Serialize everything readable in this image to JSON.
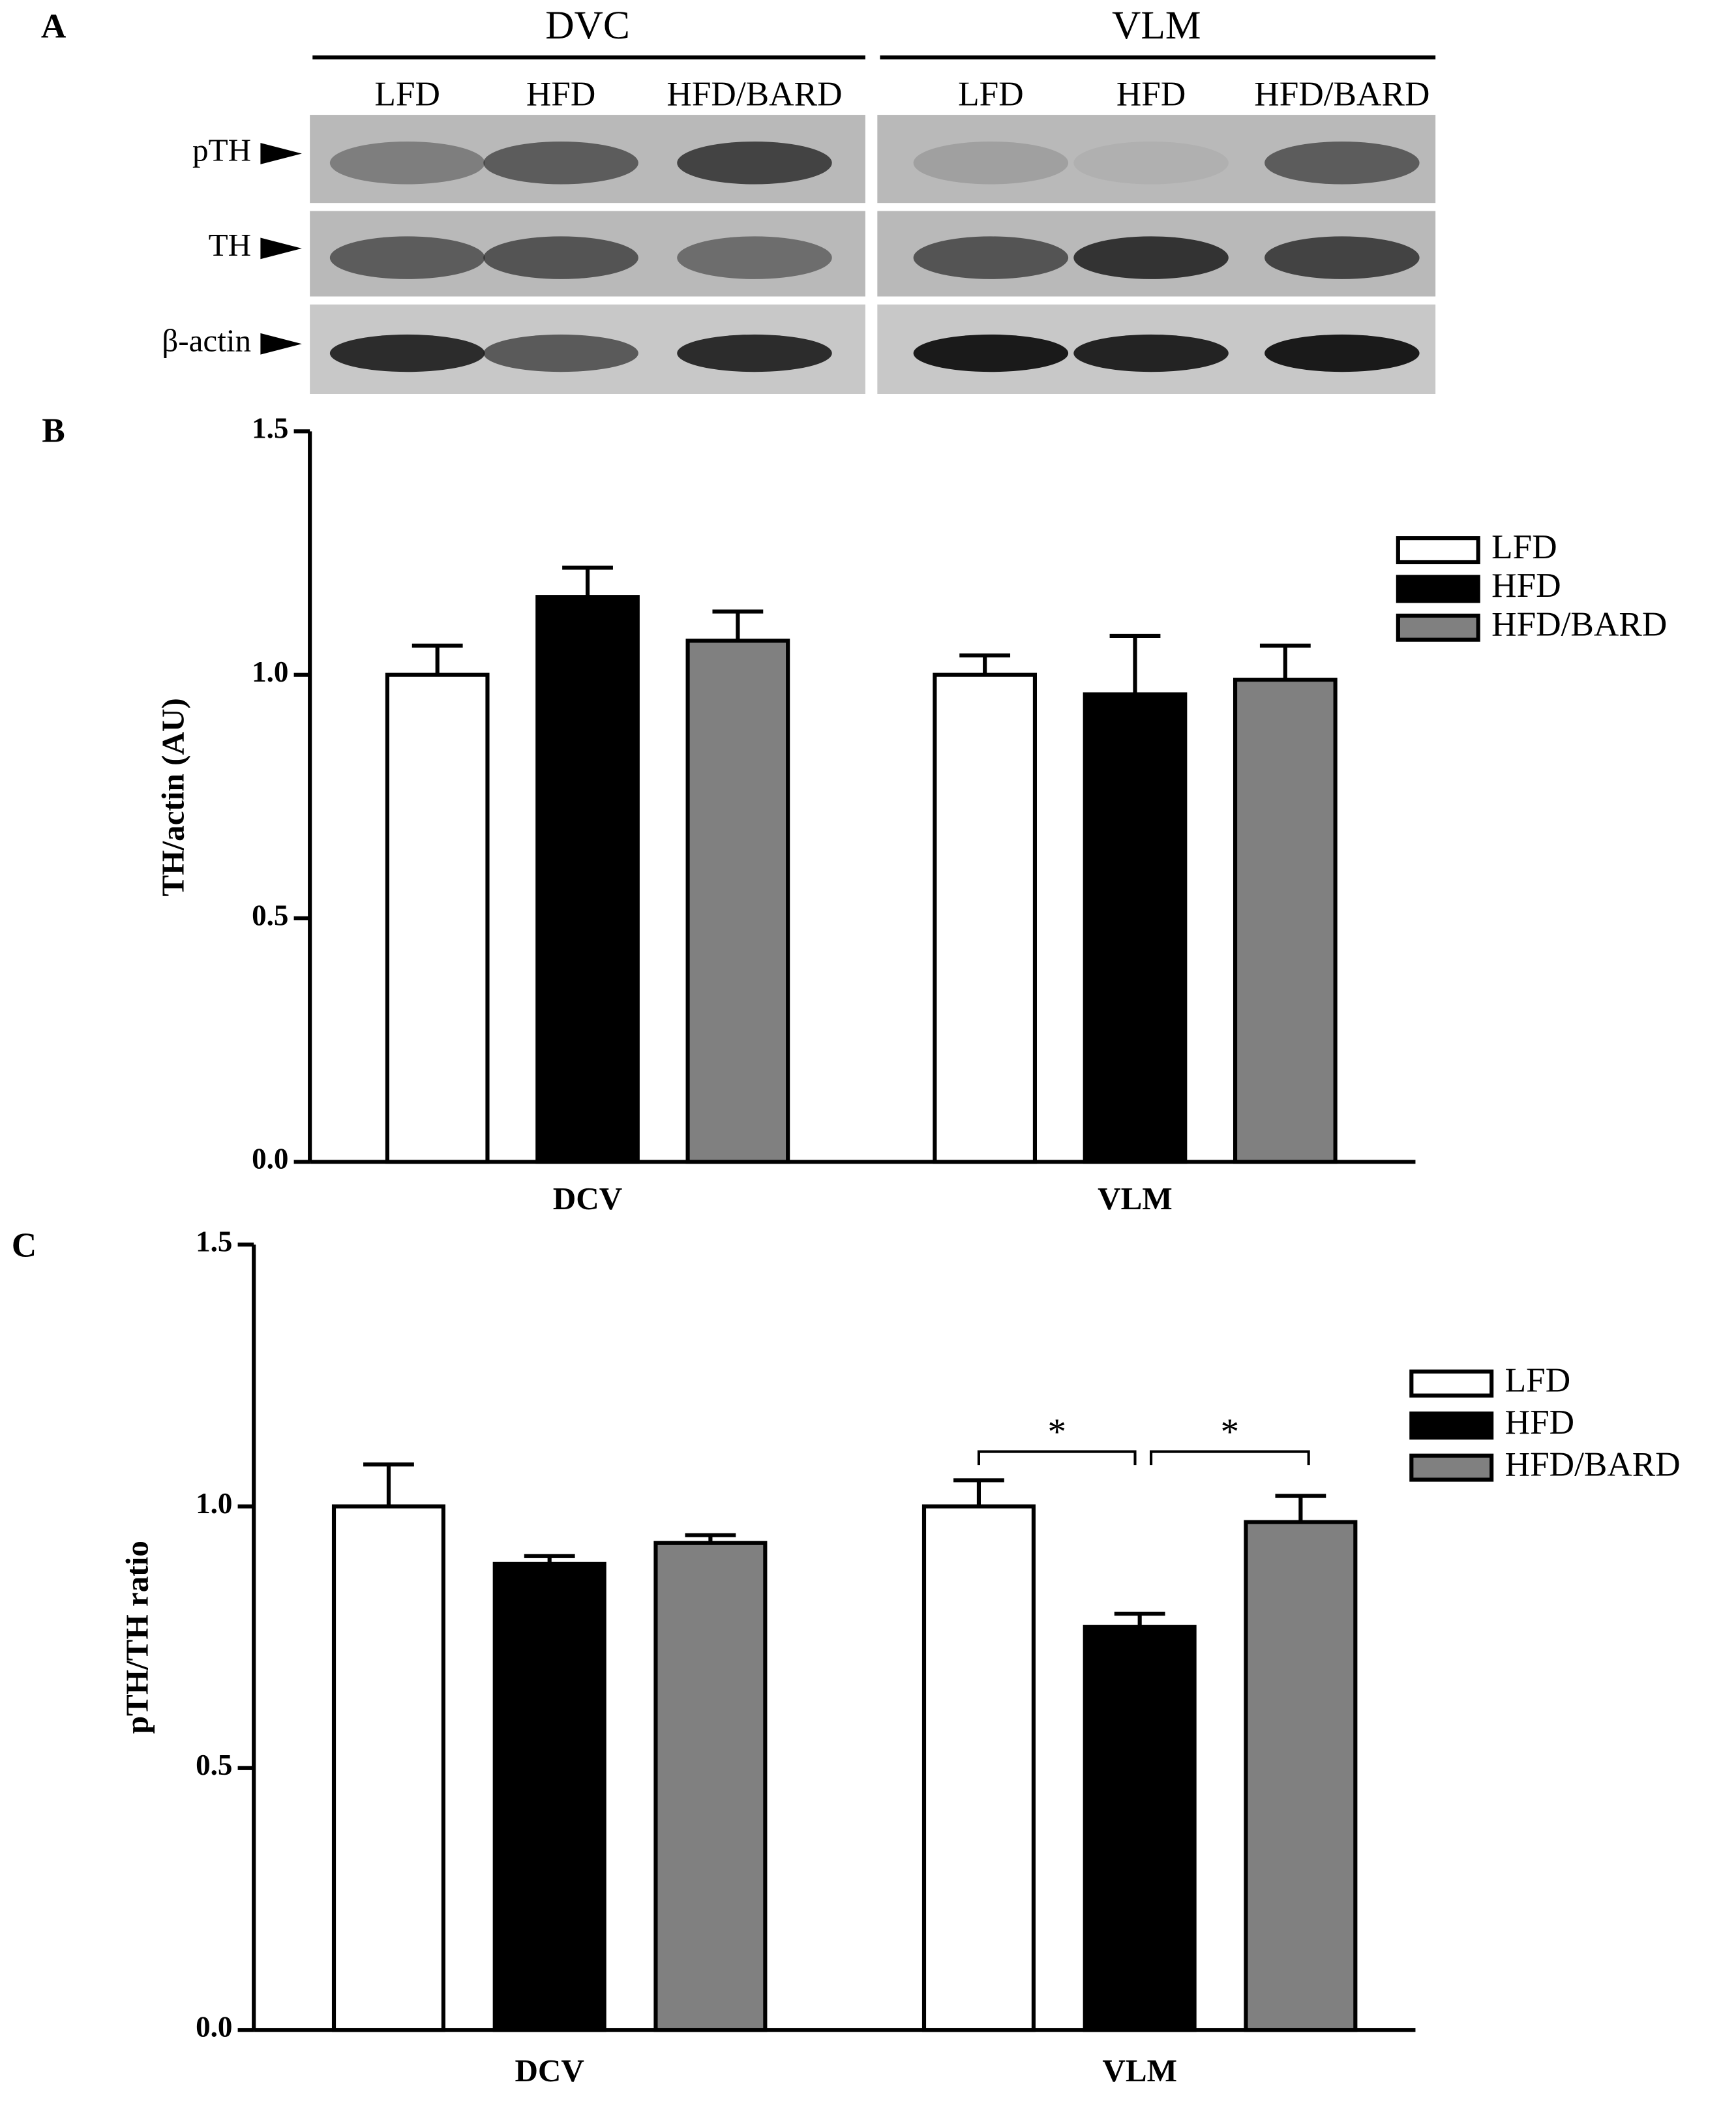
{
  "panel_a": {
    "label": "A",
    "regions": [
      {
        "name": "DVC",
        "lanes": [
          "LFD",
          "HFD",
          "HFD/BARD"
        ]
      },
      {
        "name": "VLM",
        "lanes": [
          "LFD",
          "HFD",
          "HFD/BARD"
        ]
      }
    ],
    "rows": [
      "pTH",
      "TH",
      "β-actin"
    ]
  },
  "chart_data": [
    {
      "type": "bar",
      "panel_label": "B",
      "y_label": "TH/actin (AU)",
      "categories": [
        "DCV",
        "VLM"
      ],
      "series": [
        {
          "name": "LFD",
          "color": "#ffffff",
          "values": [
            1.0,
            1.0
          ],
          "errors": [
            0.06,
            0.04
          ]
        },
        {
          "name": "HFD",
          "color": "#000000",
          "values": [
            1.16,
            0.96
          ],
          "errors": [
            0.06,
            0.12
          ]
        },
        {
          "name": "HFD/BARD",
          "color": "#808080",
          "values": [
            1.07,
            0.99
          ],
          "errors": [
            0.06,
            0.07
          ]
        }
      ],
      "ylim": [
        0,
        1.5
      ],
      "yticks": [
        {
          "value": 0,
          "label": "0.0"
        },
        0.5,
        {
          "value": 1,
          "label": "1.0"
        },
        1.5
      ],
      "legend": "upper right"
    },
    {
      "type": "bar",
      "panel_label": "C",
      "y_label": "pTH/TH ratio",
      "categories": [
        "DCV",
        "VLM"
      ],
      "series": [
        {
          "name": "LFD",
          "color": "#ffffff",
          "values": [
            1.0,
            1.0
          ],
          "errors": [
            0.08,
            0.05
          ]
        },
        {
          "name": "HFD",
          "color": "#000000",
          "values": [
            0.89,
            0.77
          ],
          "errors": [
            0.015,
            0.025
          ]
        },
        {
          "name": "HFD/BARD",
          "color": "#808080",
          "values": [
            0.93,
            0.97
          ],
          "errors": [
            0.015,
            0.05
          ]
        }
      ],
      "ylim": [
        0,
        1.5
      ],
      "yticks": [
        {
          "value": 0,
          "label": "0.0"
        },
        0.5,
        {
          "value": 1,
          "label": "1.0"
        },
        1.5
      ],
      "legend": "upper right",
      "annotations": [
        {
          "text": "*"
        },
        {
          "text": "*"
        }
      ]
    }
  ]
}
